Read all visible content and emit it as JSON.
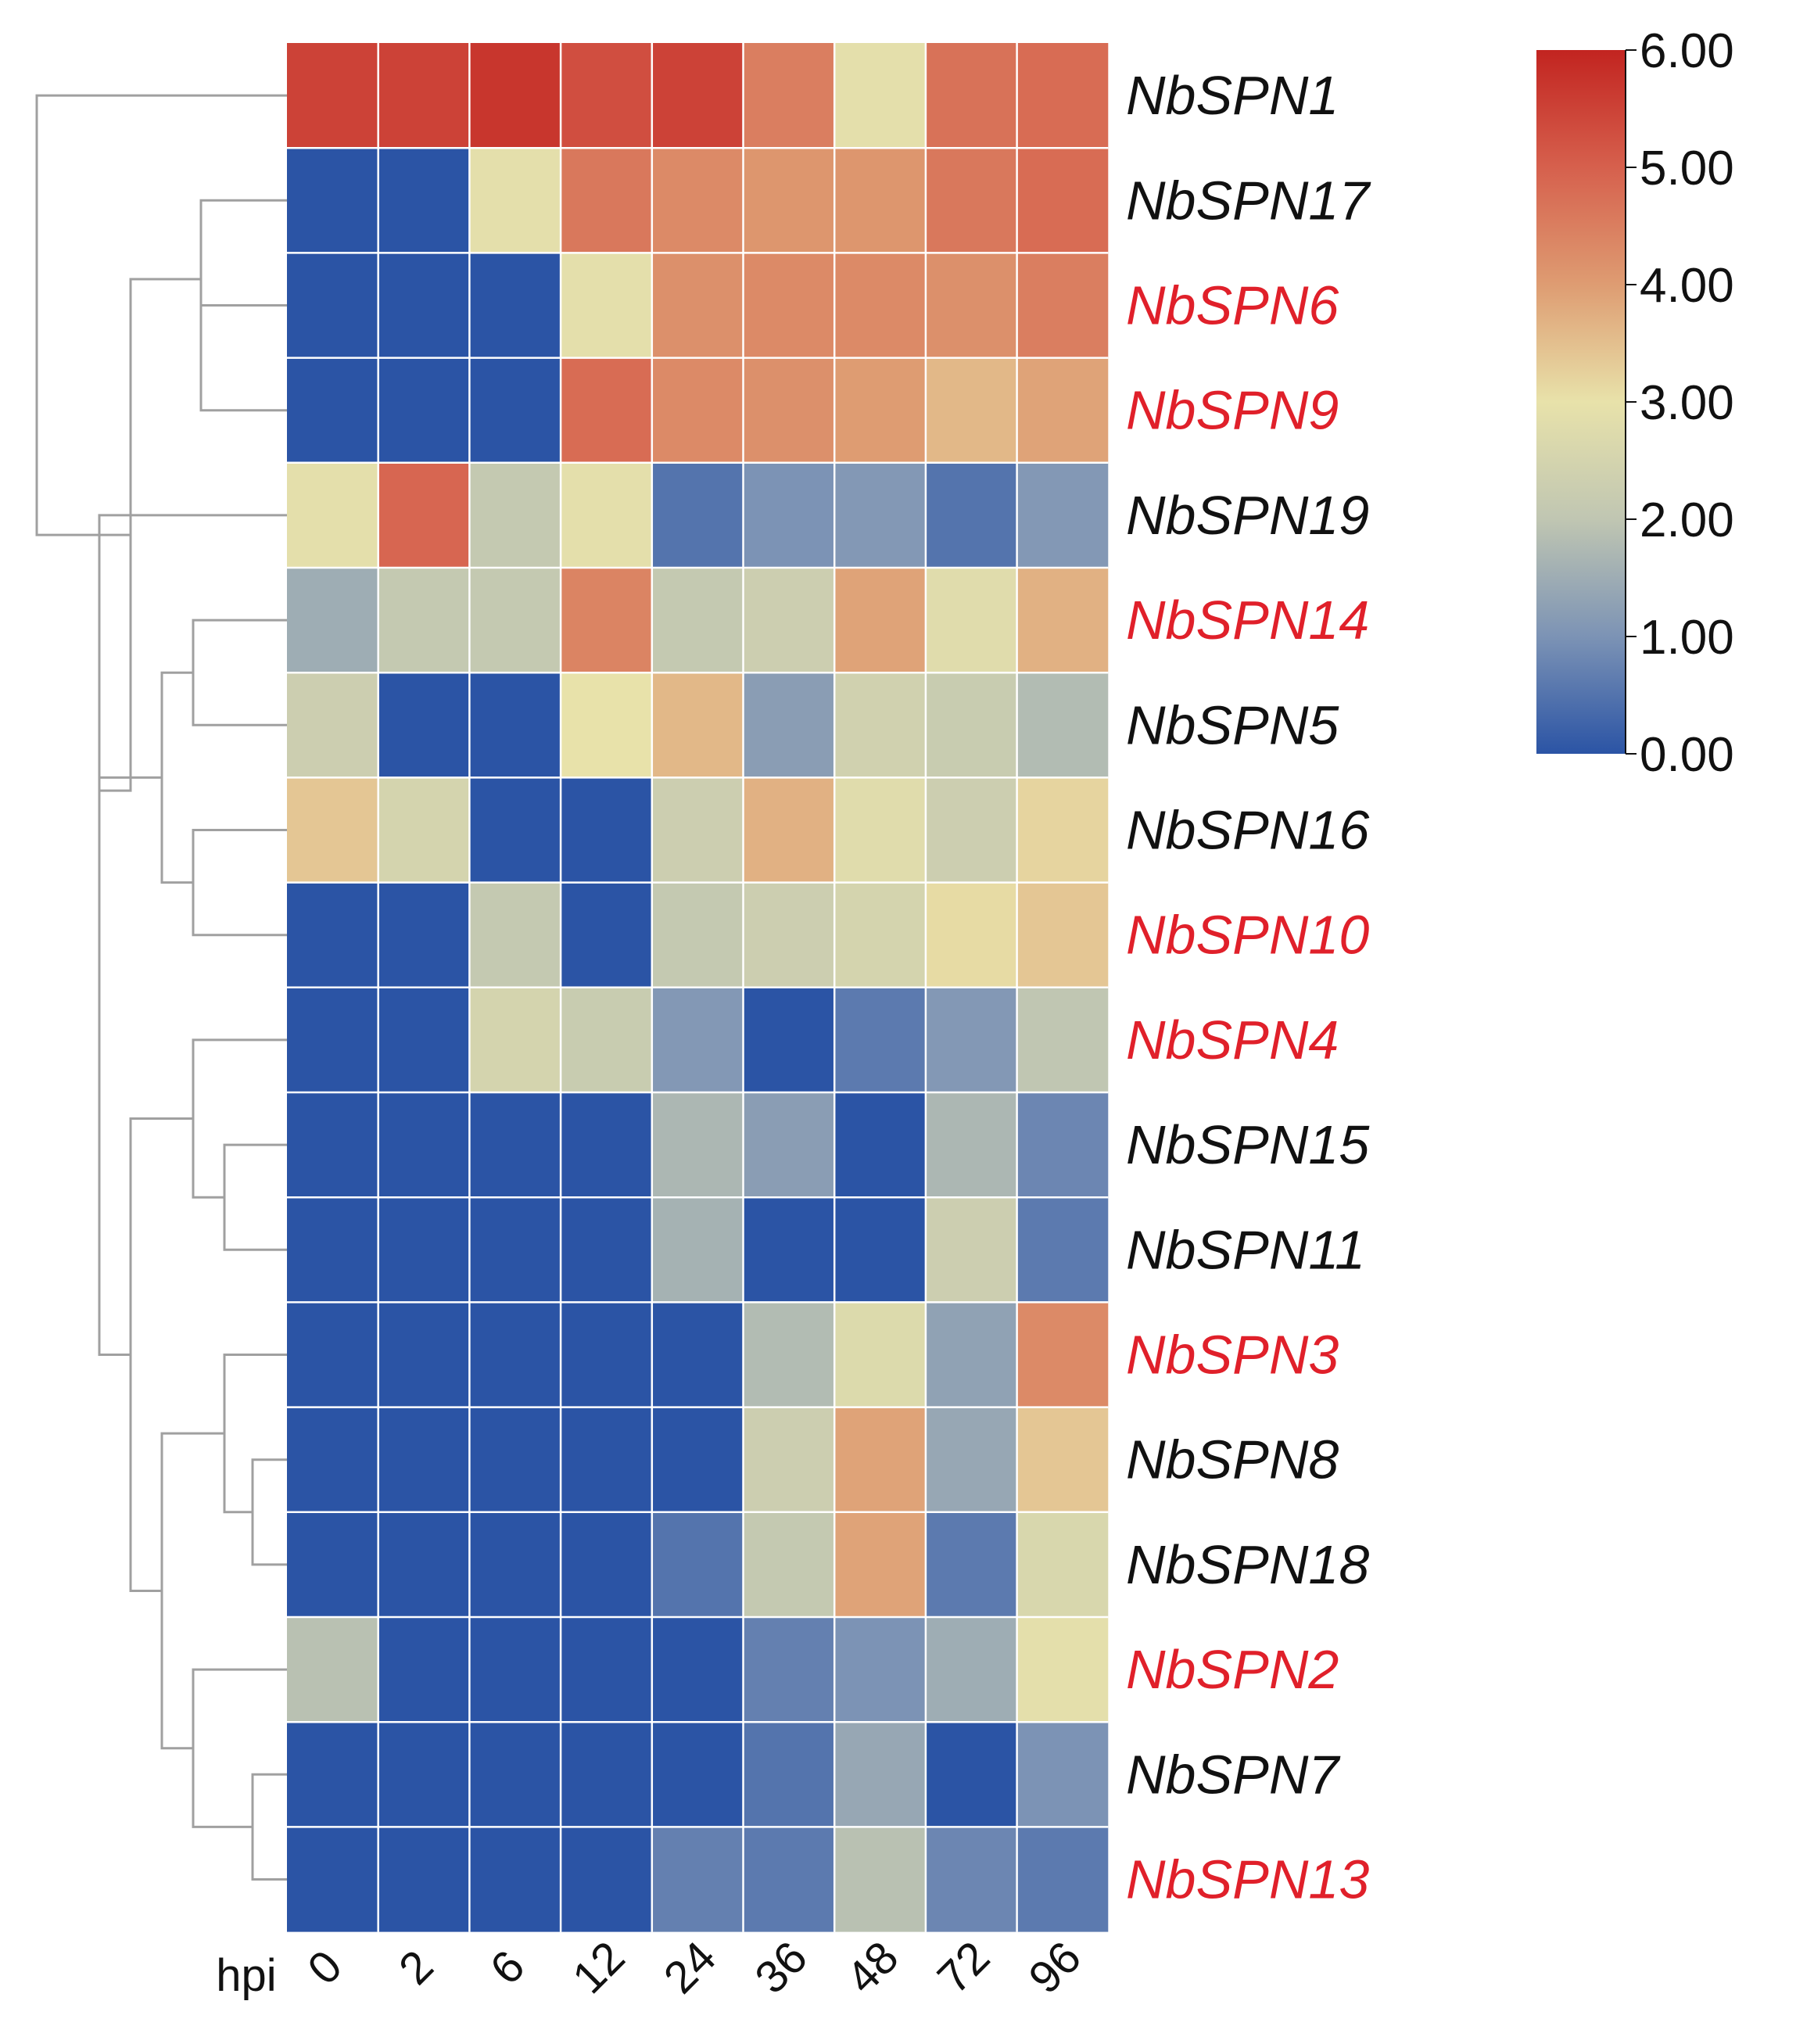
{
  "chart_data": {
    "type": "heatmap",
    "title": "",
    "x_axis_title": "hpi",
    "columns": [
      "0",
      "2",
      "6",
      "12",
      "24",
      "36",
      "48",
      "72",
      "96"
    ],
    "rows": [
      {
        "gene": "NbSPN1",
        "highlight": false,
        "values": [
          5.5,
          5.5,
          5.7,
          5.3,
          5.5,
          4.5,
          2.9,
          4.7,
          4.8
        ]
      },
      {
        "gene": "NbSPN17",
        "highlight": false,
        "values": [
          0.0,
          0.0,
          2.9,
          4.6,
          4.3,
          4.1,
          4.1,
          4.6,
          4.8
        ]
      },
      {
        "gene": "NbSPN6",
        "highlight": true,
        "values": [
          0.0,
          0.0,
          0.0,
          2.9,
          4.2,
          4.3,
          4.3,
          4.2,
          4.5
        ]
      },
      {
        "gene": "NbSPN9",
        "highlight": true,
        "values": [
          0.0,
          0.0,
          0.0,
          4.8,
          4.3,
          4.2,
          4.0,
          3.6,
          3.9
        ]
      },
      {
        "gene": "NbSPN19",
        "highlight": false,
        "values": [
          2.9,
          4.9,
          2.1,
          2.9,
          0.5,
          1.0,
          1.1,
          0.5,
          1.1
        ]
      },
      {
        "gene": "NbSPN14",
        "highlight": true,
        "values": [
          1.5,
          2.1,
          2.1,
          4.4,
          2.1,
          2.3,
          3.9,
          2.8,
          3.7
        ]
      },
      {
        "gene": "NbSPN5",
        "highlight": false,
        "values": [
          2.3,
          0.0,
          0.0,
          3.0,
          3.6,
          1.2,
          2.4,
          2.2,
          1.8
        ]
      },
      {
        "gene": "NbSPN16",
        "highlight": false,
        "values": [
          3.4,
          2.5,
          0.0,
          0.0,
          2.3,
          3.7,
          2.8,
          2.3,
          3.2
        ]
      },
      {
        "gene": "NbSPN10",
        "highlight": true,
        "values": [
          0.0,
          0.0,
          2.1,
          0.0,
          2.1,
          2.3,
          2.5,
          3.1,
          3.4
        ]
      },
      {
        "gene": "NbSPN4",
        "highlight": true,
        "values": [
          0.0,
          0.0,
          2.5,
          2.2,
          1.1,
          0.0,
          0.6,
          1.1,
          2.0
        ]
      },
      {
        "gene": "NbSPN15",
        "highlight": false,
        "values": [
          0.0,
          0.0,
          0.0,
          0.0,
          1.7,
          1.2,
          0.0,
          1.7,
          0.8
        ]
      },
      {
        "gene": "NbSPN11",
        "highlight": false,
        "values": [
          0.0,
          0.0,
          0.0,
          0.0,
          1.6,
          0.0,
          0.0,
          2.3,
          0.6
        ]
      },
      {
        "gene": "NbSPN3",
        "highlight": true,
        "values": [
          0.0,
          0.0,
          0.0,
          0.0,
          0.0,
          1.8,
          2.7,
          1.3,
          4.3
        ]
      },
      {
        "gene": "NbSPN8",
        "highlight": false,
        "values": [
          0.0,
          0.0,
          0.0,
          0.0,
          0.0,
          2.3,
          3.9,
          1.4,
          3.4
        ]
      },
      {
        "gene": "NbSPN18",
        "highlight": false,
        "values": [
          0.0,
          0.0,
          0.0,
          0.0,
          0.5,
          2.1,
          3.9,
          0.6,
          2.6
        ]
      },
      {
        "gene": "NbSPN2",
        "highlight": true,
        "values": [
          1.9,
          0.0,
          0.0,
          0.0,
          0.0,
          0.7,
          1.0,
          1.5,
          2.9
        ]
      },
      {
        "gene": "NbSPN7",
        "highlight": false,
        "values": [
          0.0,
          0.0,
          0.0,
          0.0,
          0.0,
          0.5,
          1.4,
          0.0,
          1.0
        ]
      },
      {
        "gene": "NbSPN13",
        "highlight": true,
        "values": [
          0.0,
          0.0,
          0.0,
          0.0,
          0.7,
          0.6,
          1.9,
          0.8,
          0.6
        ]
      }
    ],
    "color_scale": {
      "min": 0,
      "max": 6,
      "stops": [
        {
          "value": 0,
          "color": "#2B54A5"
        },
        {
          "value": 1,
          "color": "#7C93B5"
        },
        {
          "value": 2,
          "color": "#C0C6B2"
        },
        {
          "value": 3,
          "color": "#E8E2AA"
        },
        {
          "value": 4,
          "color": "#DE9C72"
        },
        {
          "value": 5,
          "color": "#D6604D"
        },
        {
          "value": 6,
          "color": "#C22420"
        }
      ],
      "ticks": [
        "6.00",
        "5.00",
        "4.00",
        "3.00",
        "2.00",
        "1.00",
        "0.00"
      ],
      "legend_position": "top-right"
    },
    "row_dendrogram": {
      "merges": [
        [
          2,
          3
        ],
        [
          1,
          "m0"
        ],
        [
          7,
          8
        ],
        [
          5,
          6
        ],
        [
          "m3",
          "m2"
        ],
        [
          10,
          11
        ],
        [
          9,
          "m5"
        ],
        [
          13,
          14
        ],
        [
          12,
          "m7"
        ],
        [
          16,
          17
        ],
        [
          15,
          "m9"
        ],
        [
          "m8",
          "m10"
        ],
        [
          "m6",
          "m11"
        ],
        [
          "m4",
          "m12"
        ],
        [
          4,
          "m13"
        ],
        [
          "m1",
          "m14"
        ],
        [
          0,
          "m15"
        ]
      ]
    },
    "label_colors": {
      "normal": "#111111",
      "highlight": "#E0202A"
    },
    "line_color": "#A0A0A0"
  }
}
